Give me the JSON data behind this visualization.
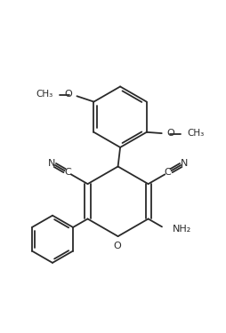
{
  "bg_color": "#ffffff",
  "line_color": "#2a2a2a",
  "line_width": 1.3,
  "text_color": "#2a2a2a",
  "font_size": 8.0,
  "fig_width": 2.55,
  "fig_height": 3.75,
  "dpi": 100,
  "xlim": [
    0,
    10
  ],
  "ylim": [
    0,
    14.7
  ]
}
